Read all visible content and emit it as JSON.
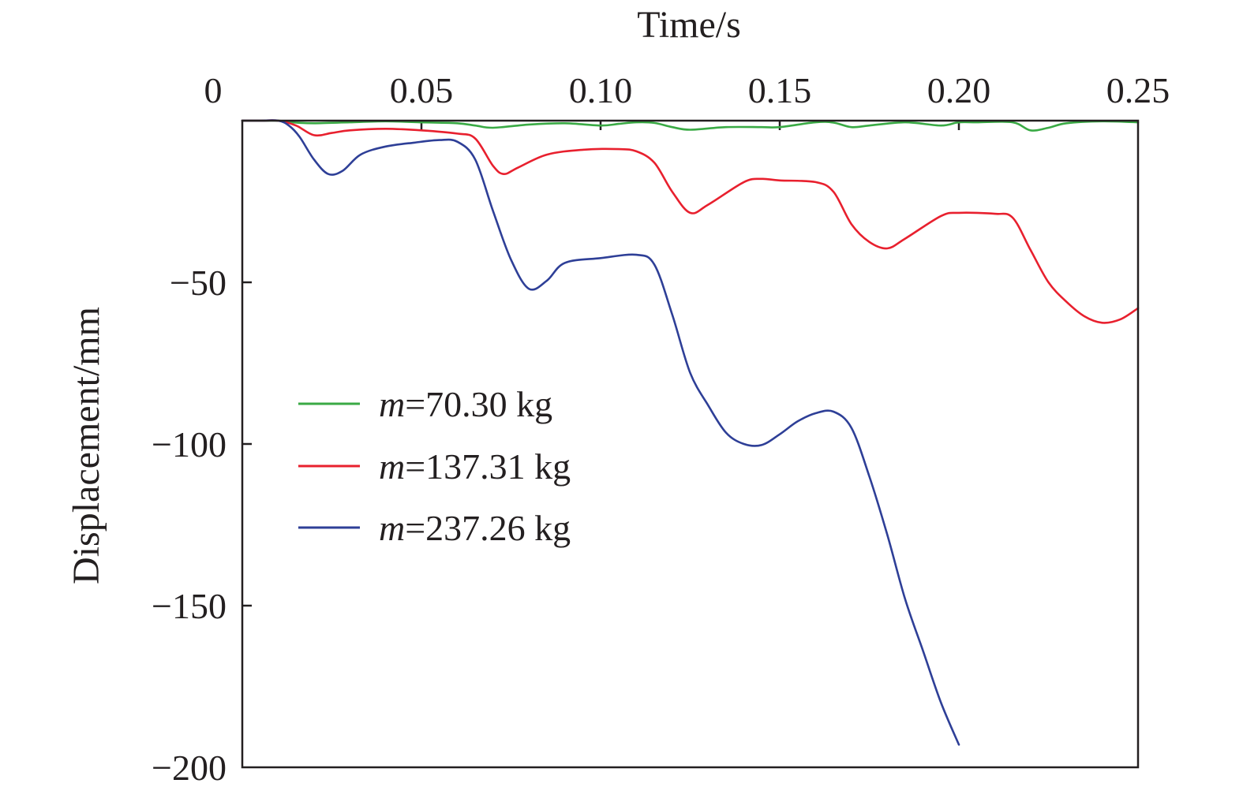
{
  "chart_data": {
    "type": "line",
    "title": "",
    "xlabel": "Time/s",
    "ylabel": "Displacement/mm",
    "xlim": [
      0,
      0.25
    ],
    "ylim": [
      -200,
      0
    ],
    "x_axis_position": "top",
    "grid": false,
    "legend_position": "middle-left",
    "x_ticks": [
      {
        "value": 0,
        "label": "0"
      },
      {
        "value": 0.05,
        "label": "0.05"
      },
      {
        "value": 0.1,
        "label": "0.10"
      },
      {
        "value": 0.15,
        "label": "0.15"
      },
      {
        "value": 0.2,
        "label": "0.20"
      },
      {
        "value": 0.25,
        "label": "0.25"
      }
    ],
    "y_ticks": [
      {
        "value": -50,
        "label": "−50"
      },
      {
        "value": -100,
        "label": "−100"
      },
      {
        "value": -150,
        "label": "−150"
      },
      {
        "value": -200,
        "label": "−200"
      }
    ],
    "series": [
      {
        "name": "m=70.30 kg",
        "name_italic": "m",
        "name_rest": "=70.30 kg",
        "color": "#3aaa45",
        "points": [
          [
            0,
            0
          ],
          [
            0.005,
            0
          ],
          [
            0.01,
            0
          ],
          [
            0.015,
            -0.6
          ],
          [
            0.02,
            -0.8
          ],
          [
            0.03,
            -0.5
          ],
          [
            0.04,
            -0.2
          ],
          [
            0.05,
            -0.5
          ],
          [
            0.06,
            -0.8
          ],
          [
            0.065,
            -1.5
          ],
          [
            0.07,
            -2.2
          ],
          [
            0.08,
            -1.2
          ],
          [
            0.09,
            -0.8
          ],
          [
            0.1,
            -1.5
          ],
          [
            0.105,
            -1.0
          ],
          [
            0.11,
            -0.5
          ],
          [
            0.115,
            -0.7
          ],
          [
            0.12,
            -2.0
          ],
          [
            0.125,
            -2.8
          ],
          [
            0.135,
            -2.0
          ],
          [
            0.145,
            -2.0
          ],
          [
            0.15,
            -2.0
          ],
          [
            0.16,
            -0.5
          ],
          [
            0.165,
            -0.6
          ],
          [
            0.17,
            -2.0
          ],
          [
            0.175,
            -1.5
          ],
          [
            0.185,
            -0.5
          ],
          [
            0.195,
            -1.5
          ],
          [
            0.2,
            -0.5
          ],
          [
            0.205,
            -0.5
          ],
          [
            0.215,
            -0.5
          ],
          [
            0.22,
            -3.0
          ],
          [
            0.225,
            -2.2
          ],
          [
            0.23,
            -0.8
          ],
          [
            0.24,
            -0.2
          ],
          [
            0.25,
            -0.5
          ]
        ]
      },
      {
        "name": "m=137.31 kg",
        "name_italic": "m",
        "name_rest": "=137.31 kg",
        "color": "#e8202e",
        "points": [
          [
            0,
            0
          ],
          [
            0.005,
            0
          ],
          [
            0.01,
            0
          ],
          [
            0.015,
            -1.5
          ],
          [
            0.02,
            -4.5
          ],
          [
            0.025,
            -3.8
          ],
          [
            0.03,
            -3.0
          ],
          [
            0.04,
            -2.5
          ],
          [
            0.05,
            -3.0
          ],
          [
            0.06,
            -4.0
          ],
          [
            0.065,
            -5.5
          ],
          [
            0.07,
            -14.0
          ],
          [
            0.073,
            -16.5
          ],
          [
            0.077,
            -14.5
          ],
          [
            0.085,
            -10.5
          ],
          [
            0.095,
            -9.0
          ],
          [
            0.105,
            -8.8
          ],
          [
            0.11,
            -9.5
          ],
          [
            0.115,
            -13.0
          ],
          [
            0.12,
            -22.0
          ],
          [
            0.125,
            -28.5
          ],
          [
            0.13,
            -26.0
          ],
          [
            0.14,
            -19.0
          ],
          [
            0.145,
            -18.0
          ],
          [
            0.15,
            -18.5
          ],
          [
            0.16,
            -19.0
          ],
          [
            0.165,
            -22.0
          ],
          [
            0.17,
            -32.0
          ],
          [
            0.175,
            -37.5
          ],
          [
            0.18,
            -39.5
          ],
          [
            0.185,
            -36.5
          ],
          [
            0.195,
            -29.5
          ],
          [
            0.2,
            -28.5
          ],
          [
            0.21,
            -28.8
          ],
          [
            0.215,
            -30.0
          ],
          [
            0.22,
            -40.0
          ],
          [
            0.225,
            -50.0
          ],
          [
            0.23,
            -56.0
          ],
          [
            0.235,
            -60.5
          ],
          [
            0.24,
            -62.5
          ],
          [
            0.245,
            -61.5
          ],
          [
            0.25,
            -58.0
          ]
        ]
      },
      {
        "name": "m=237.26 kg",
        "name_italic": "m",
        "name_rest": "=237.26 kg",
        "color": "#2e3f97",
        "points": [
          [
            0,
            0
          ],
          [
            0.005,
            0
          ],
          [
            0.01,
            0
          ],
          [
            0.013,
            -1.5
          ],
          [
            0.016,
            -5.0
          ],
          [
            0.02,
            -12.0
          ],
          [
            0.024,
            -16.5
          ],
          [
            0.028,
            -15.5
          ],
          [
            0.033,
            -10.5
          ],
          [
            0.04,
            -8.0
          ],
          [
            0.048,
            -6.8
          ],
          [
            0.055,
            -6.0
          ],
          [
            0.06,
            -6.5
          ],
          [
            0.065,
            -12.0
          ],
          [
            0.07,
            -28.0
          ],
          [
            0.075,
            -43.0
          ],
          [
            0.08,
            -52.0
          ],
          [
            0.085,
            -49.5
          ],
          [
            0.09,
            -44.0
          ],
          [
            0.1,
            -42.5
          ],
          [
            0.11,
            -41.5
          ],
          [
            0.115,
            -44.5
          ],
          [
            0.12,
            -60.0
          ],
          [
            0.125,
            -78.0
          ],
          [
            0.13,
            -88.0
          ],
          [
            0.135,
            -96.5
          ],
          [
            0.14,
            -100.0
          ],
          [
            0.145,
            -100.3
          ],
          [
            0.15,
            -97.0
          ],
          [
            0.155,
            -93.0
          ],
          [
            0.16,
            -90.5
          ],
          [
            0.165,
            -90.0
          ],
          [
            0.17,
            -95.0
          ],
          [
            0.175,
            -110.0
          ],
          [
            0.18,
            -128.0
          ],
          [
            0.185,
            -148.0
          ],
          [
            0.19,
            -164.0
          ],
          [
            0.195,
            -180.0
          ],
          [
            0.2,
            -193.0
          ]
        ]
      }
    ]
  }
}
